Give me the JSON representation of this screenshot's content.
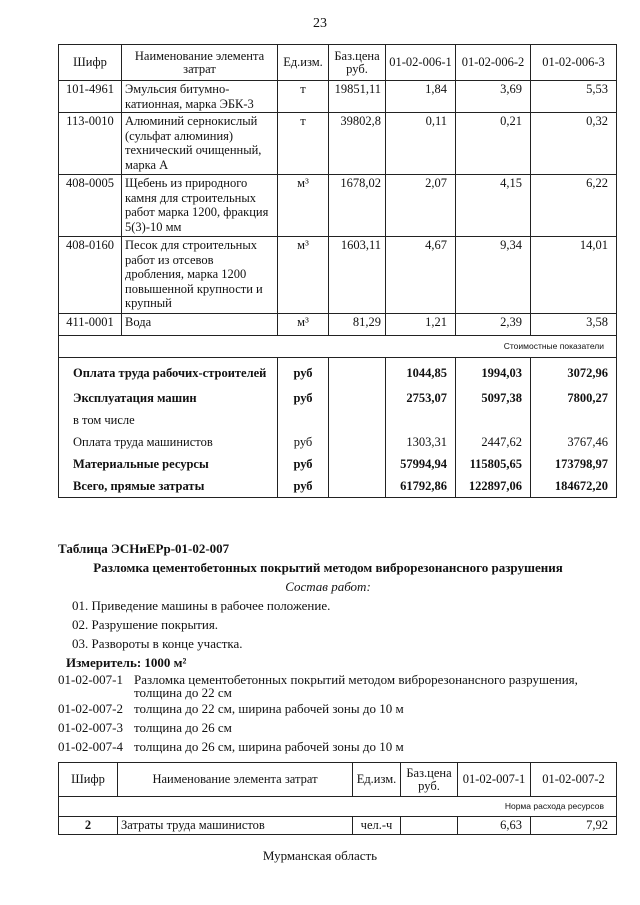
{
  "page_number": "23",
  "table1": {
    "headers": [
      "Шифр",
      "Наименование элемента затрат",
      "Ед.изм.",
      "Баз.цена руб.",
      "01-02-006-1",
      "01-02-006-2",
      "01-02-006-3"
    ],
    "rows": [
      {
        "code": "101-4961",
        "name": "Эмульсия битумно-катионная, марка ЭБК-3",
        "unit": "т",
        "price": "19851,11",
        "v1": "1,84",
        "v2": "3,69",
        "v3": "5,53"
      },
      {
        "code": "113-0010",
        "name": "Алюминий сернокислый (сульфат алюминия) технический очищенный, марка А",
        "unit": "т",
        "price": "39802,8",
        "v1": "0,11",
        "v2": "0,21",
        "v3": "0,32"
      },
      {
        "code": "408-0005",
        "name": "Щебень из природного камня для строительных работ марка 1200, фракция 5(3)-10 мм",
        "unit": "м³",
        "price": "1678,02",
        "v1": "2,07",
        "v2": "4,15",
        "v3": "6,22"
      },
      {
        "code": "408-0160",
        "name": "Песок для строительных работ из отсевов дробления, марка 1200 повышенной крупности и крупный",
        "unit": "м³",
        "price": "1603,11",
        "v1": "4,67",
        "v2": "9,34",
        "v3": "14,01"
      },
      {
        "code": "411-0001",
        "name": "Вода",
        "unit": "м³",
        "price": "81,29",
        "v1": "1,21",
        "v2": "2,39",
        "v3": "3,58"
      }
    ],
    "section_label": "Стоимостные показатели",
    "summary": [
      {
        "name": "Оплата труда рабочих-строителей",
        "unit": "руб",
        "v1": "1044,85",
        "v2": "1994,03",
        "v3": "3072,96"
      },
      {
        "name": "Эксплуатация машин",
        "unit": "руб",
        "v1": "2753,07",
        "v2": "5097,38",
        "v3": "7800,27"
      },
      {
        "name": "в том числе",
        "unit": "",
        "v1": "",
        "v2": "",
        "v3": ""
      },
      {
        "name": "Оплата труда машинистов",
        "unit": "руб",
        "v1": "1303,31",
        "v2": "2447,62",
        "v3": "3767,46"
      },
      {
        "name": "Материальные ресурсы",
        "unit": "руб",
        "v1": "57994,94",
        "v2": "115805,65",
        "v3": "173798,97"
      },
      {
        "name": "Всего, прямые затраты",
        "unit": "руб",
        "v1": "61792,86",
        "v2": "122897,06",
        "v3": "184672,20"
      }
    ]
  },
  "section": {
    "table_id": "Таблица  ЭСНиЕРр-01-02-007",
    "title": "Разломка цементобетонных покрытий методом виброрезонансного разрушения",
    "work_heading": "Состав работ:",
    "works": [
      "01. Приведение машины в рабочее положение.",
      "02. Разрушение покрытия.",
      "03. Развороты в конце участка."
    ],
    "measure": "Измеритель: 1000 м²",
    "items": [
      {
        "code": "01-02-007-1",
        "text": "Разломка цементобетонных покрытий методом виброрезонансного разрушения,",
        "text2": "толщина до 22 см"
      },
      {
        "code": "01-02-007-2",
        "text": "толщина до 22 см, ширина рабочей зоны до 10 м"
      },
      {
        "code": "01-02-007-3",
        "text": "толщина до 26 см"
      },
      {
        "code": "01-02-007-4",
        "text": "толщина до 26 см, ширина рабочей зоны до 10 м"
      }
    ]
  },
  "table2": {
    "headers": [
      "Шифр",
      "Наименование элемента затрат",
      "Ед.изм.",
      "Баз.цена руб.",
      "01-02-007-1",
      "01-02-007-2"
    ],
    "section_label": "Норма расхода ресурсов",
    "rows": [
      {
        "code": "2",
        "name": "Затраты труда машинистов",
        "unit": "чел.-ч",
        "price": "",
        "v1": "6,63",
        "v2": "7,92"
      }
    ]
  },
  "footer": "Мурманская область"
}
